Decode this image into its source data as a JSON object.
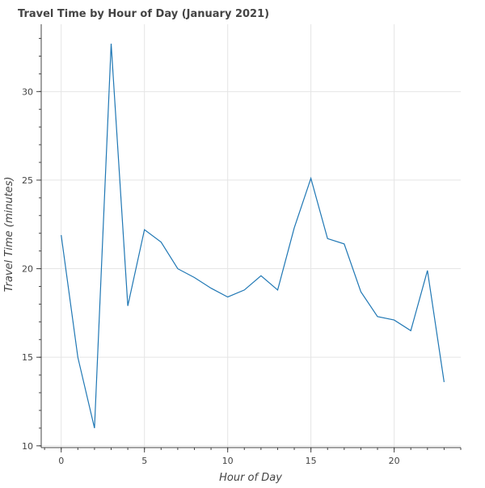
{
  "chart_data": {
    "type": "line",
    "title": "Travel Time by Hour of Day (January 2021)",
    "xlabel": "Hour of Day",
    "ylabel": "Travel Time (minutes)",
    "xlim": [
      -1.2,
      24
    ],
    "ylim": [
      9.9,
      33.8
    ],
    "x_ticks": [
      0,
      5,
      10,
      15,
      20
    ],
    "x_tick_labels": [
      "0",
      "5",
      "10",
      "15",
      "20"
    ],
    "x_minor_step": 1,
    "y_ticks": [
      10,
      15,
      20,
      25,
      30
    ],
    "y_tick_labels": [
      "10",
      "15",
      "20",
      "25",
      "30"
    ],
    "y_minor_step": 1,
    "grid": true,
    "x": [
      0,
      1,
      2,
      3,
      4,
      5,
      6,
      7,
      8,
      9,
      10,
      11,
      12,
      13,
      14,
      15,
      16,
      17,
      18,
      19,
      20,
      21,
      22,
      23
    ],
    "series": [
      {
        "values": [
          21.9,
          15.0,
          11.0,
          32.7,
          17.9,
          22.2,
          21.5,
          20.0,
          19.5,
          18.9,
          18.4,
          18.8,
          19.6,
          18.8,
          22.3,
          25.1,
          21.7,
          21.4,
          18.7,
          17.3,
          17.1,
          16.5,
          19.9,
          13.6
        ],
        "color": "#1f77b4"
      }
    ]
  },
  "colors": {
    "grid": "#e5e5e5",
    "axis": "#444444",
    "title": "#444444",
    "tick_label": "#444444",
    "axis_label": "#444444"
  }
}
